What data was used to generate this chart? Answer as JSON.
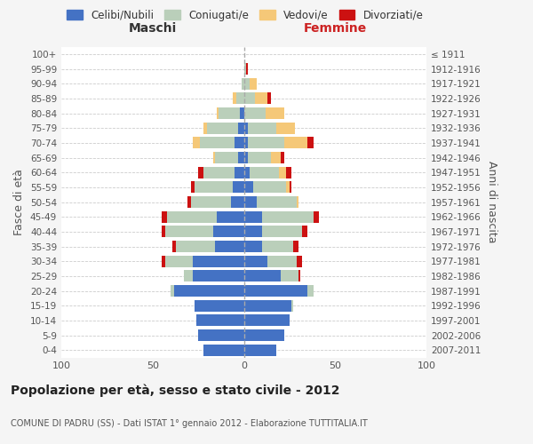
{
  "age_groups": [
    "0-4",
    "5-9",
    "10-14",
    "15-19",
    "20-24",
    "25-29",
    "30-34",
    "35-39",
    "40-44",
    "45-49",
    "50-54",
    "55-59",
    "60-64",
    "65-69",
    "70-74",
    "75-79",
    "80-84",
    "85-89",
    "90-94",
    "95-99",
    "100+"
  ],
  "birth_years": [
    "2007-2011",
    "2002-2006",
    "1997-2001",
    "1992-1996",
    "1987-1991",
    "1982-1986",
    "1977-1981",
    "1972-1976",
    "1967-1971",
    "1962-1966",
    "1957-1961",
    "1952-1956",
    "1947-1951",
    "1942-1946",
    "1937-1941",
    "1932-1936",
    "1927-1931",
    "1922-1926",
    "1917-1921",
    "1912-1916",
    "≤ 1911"
  ],
  "males": {
    "celibi": [
      22,
      25,
      26,
      27,
      38,
      28,
      28,
      16,
      17,
      15,
      7,
      6,
      5,
      3,
      5,
      3,
      2,
      0,
      0,
      0,
      0
    ],
    "coniugati": [
      0,
      0,
      0,
      0,
      2,
      5,
      15,
      21,
      26,
      27,
      22,
      21,
      17,
      13,
      19,
      17,
      12,
      4,
      1,
      0,
      0
    ],
    "vedovi": [
      0,
      0,
      0,
      0,
      0,
      0,
      0,
      0,
      0,
      0,
      0,
      0,
      0,
      1,
      4,
      2,
      1,
      2,
      0,
      0,
      0
    ],
    "divorziati": [
      0,
      0,
      0,
      0,
      0,
      0,
      2,
      2,
      2,
      3,
      2,
      2,
      3,
      0,
      0,
      0,
      0,
      0,
      0,
      0,
      0
    ]
  },
  "females": {
    "nubili": [
      18,
      22,
      25,
      26,
      35,
      20,
      13,
      10,
      10,
      10,
      7,
      5,
      3,
      2,
      2,
      2,
      0,
      0,
      0,
      0,
      0
    ],
    "coniugate": [
      0,
      0,
      0,
      1,
      3,
      10,
      16,
      17,
      22,
      28,
      22,
      18,
      16,
      13,
      20,
      16,
      12,
      6,
      3,
      1,
      0
    ],
    "vedove": [
      0,
      0,
      0,
      0,
      0,
      0,
      0,
      0,
      0,
      0,
      1,
      2,
      4,
      5,
      13,
      10,
      10,
      7,
      4,
      0,
      0
    ],
    "divorziate": [
      0,
      0,
      0,
      0,
      0,
      1,
      3,
      3,
      3,
      3,
      0,
      1,
      3,
      2,
      3,
      0,
      0,
      2,
      0,
      1,
      0
    ]
  },
  "colors": {
    "celibi_nubili": "#4472C4",
    "coniugati": "#BACFBA",
    "vedovi": "#F5C878",
    "divorziati": "#CC1111"
  },
  "xlim": 100,
  "title": "Popolazione per età, sesso e stato civile - 2012",
  "subtitle": "COMUNE DI PADRU (SS) - Dati ISTAT 1° gennaio 2012 - Elaborazione TUTTITALIA.IT",
  "ylabel_left": "Fasce di età",
  "ylabel_right": "Anni di nascita",
  "xlabel_left": "Maschi",
  "xlabel_right": "Femmine",
  "bg_color": "#f5f5f5",
  "plot_bg_color": "#ffffff"
}
